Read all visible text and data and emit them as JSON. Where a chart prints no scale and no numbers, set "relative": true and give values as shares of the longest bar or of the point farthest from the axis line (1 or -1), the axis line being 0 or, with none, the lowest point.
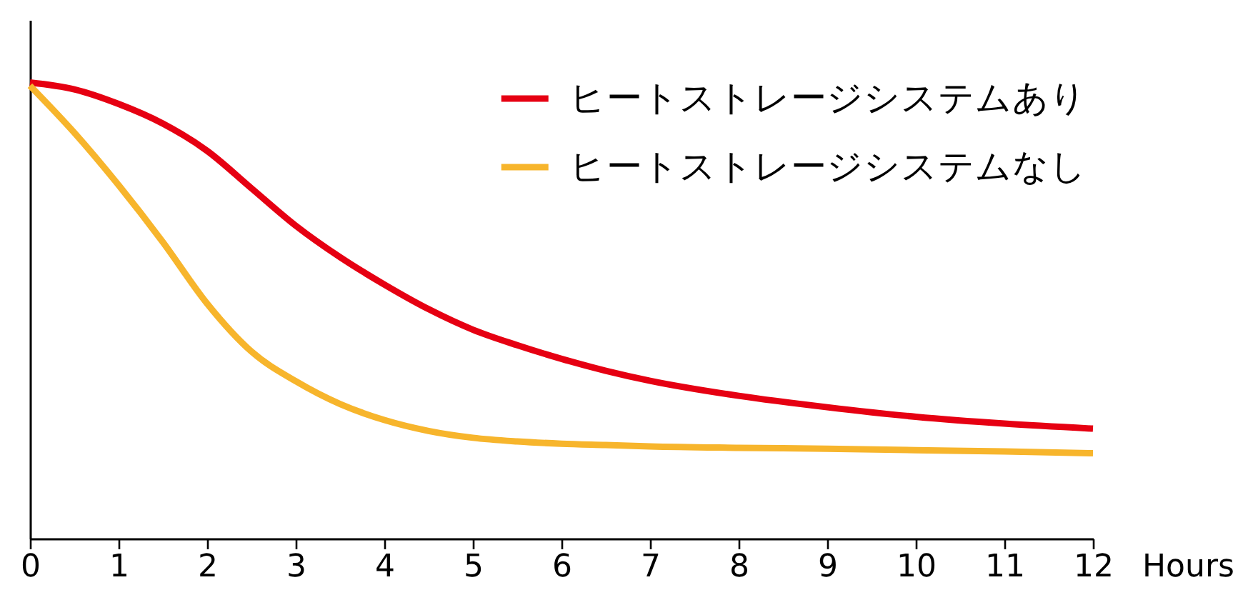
{
  "chart_data": {
    "type": "line",
    "xlabel": "Hours",
    "x": [
      0,
      0.5,
      1,
      1.5,
      2,
      2.5,
      3,
      3.5,
      4,
      4.5,
      5,
      5.5,
      6,
      6.5,
      7,
      8,
      9,
      10,
      11,
      12
    ],
    "series": [
      {
        "name": "ヒートストレージシステムあり",
        "color": "#e60012",
        "values": [
          1.0,
          0.985,
          0.953,
          0.91,
          0.85,
          0.768,
          0.686,
          0.617,
          0.557,
          0.503,
          0.458,
          0.424,
          0.394,
          0.368,
          0.346,
          0.313,
          0.288,
          0.267,
          0.252,
          0.241
        ]
      },
      {
        "name": "ヒートストレージシステムなし",
        "color": "#f7b52c",
        "values": [
          0.993,
          0.89,
          0.775,
          0.65,
          0.515,
          0.41,
          0.345,
          0.295,
          0.26,
          0.236,
          0.221,
          0.213,
          0.208,
          0.205,
          0.202,
          0.199,
          0.197,
          0.194,
          0.191,
          0.187
        ]
      }
    ],
    "xlim": [
      0,
      12
    ],
    "xticks": [
      0,
      1,
      2,
      3,
      4,
      5,
      6,
      7,
      8,
      9,
      10,
      11,
      12
    ],
    "relative": true,
    "legend": "top right",
    "grid": false,
    "line_style": "solid"
  }
}
